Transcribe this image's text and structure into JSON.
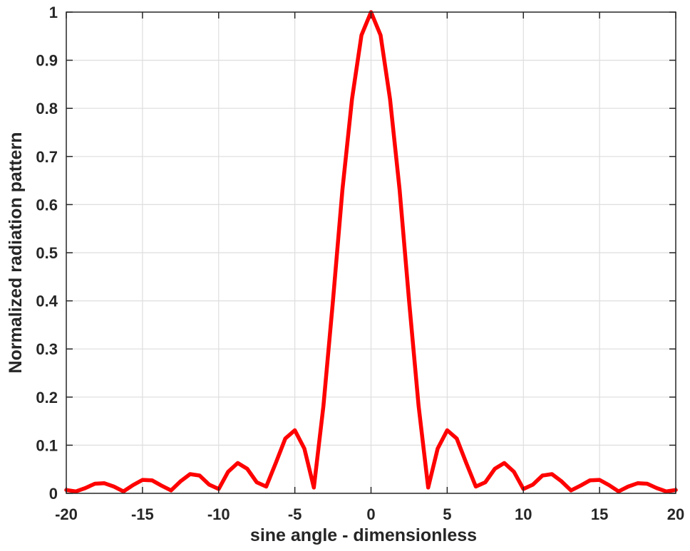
{
  "chart_data": {
    "type": "line",
    "title": "",
    "xlabel": "sine angle - dimensionless",
    "ylabel": "Normalized radiation pattern",
    "xlim": [
      -20,
      20
    ],
    "ylim": [
      0,
      1
    ],
    "grid": true,
    "legend": null,
    "xticks": [
      -20,
      -15,
      -10,
      -5,
      0,
      5,
      10,
      15,
      20
    ],
    "xtick_labels": [
      "-20",
      "-15",
      "-10",
      "-5",
      "0",
      "5",
      "10",
      "15",
      "20"
    ],
    "yticks": [
      0,
      0.1,
      0.2,
      0.3,
      0.4,
      0.5,
      0.6,
      0.7,
      0.8,
      0.9,
      1
    ],
    "ytick_labels": [
      "0",
      "0.1",
      "0.2",
      "0.3",
      "0.4",
      "0.5",
      "0.6",
      "0.7",
      "0.8",
      "0.9",
      "1"
    ],
    "series": [
      {
        "name": "radiation pattern",
        "color": "#ff0000",
        "x": [
          0,
          0.625,
          1.25,
          1.875,
          2.5,
          3.125,
          3.75,
          4.375,
          5.0,
          5.625,
          6.25,
          6.875,
          7.5,
          8.125,
          8.75,
          9.375,
          10.0,
          10.625,
          11.25,
          11.875,
          12.5,
          13.125,
          13.75,
          14.375,
          15.0,
          15.625,
          16.25,
          16.875,
          17.5,
          18.125,
          18.75,
          19.375,
          20.0
        ],
        "y": [
          1.0,
          0.952,
          0.819,
          0.631,
          0.4,
          0.181,
          0.012,
          0.093,
          0.131,
          0.114,
          0.063,
          0.014,
          0.023,
          0.051,
          0.063,
          0.045,
          0.009,
          0.018,
          0.037,
          0.04,
          0.025,
          0.006,
          0.016,
          0.027,
          0.028,
          0.017,
          0.004,
          0.014,
          0.021,
          0.02,
          0.011,
          0.004,
          0.007
        ]
      }
    ]
  }
}
